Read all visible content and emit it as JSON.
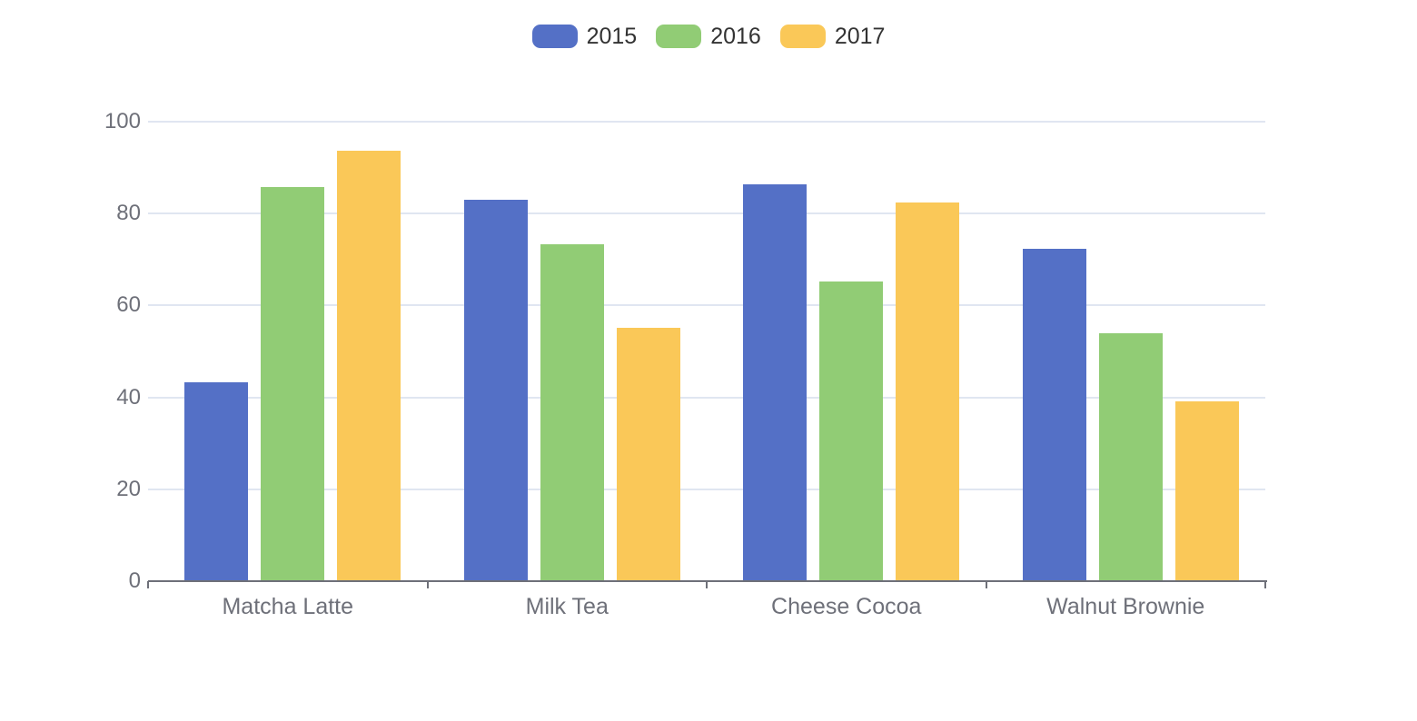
{
  "chart_data": {
    "type": "bar",
    "title": "",
    "xlabel": "",
    "ylabel": "",
    "categories": [
      "Matcha Latte",
      "Milk Tea",
      "Cheese Cocoa",
      "Walnut Brownie"
    ],
    "series": [
      {
        "name": "2015",
        "color": "#5470C6",
        "values": [
          43.3,
          83.1,
          86.4,
          72.4
        ]
      },
      {
        "name": "2016",
        "color": "#91CC75",
        "values": [
          85.8,
          73.4,
          65.2,
          53.9
        ]
      },
      {
        "name": "2017",
        "color": "#FAC858",
        "values": [
          93.7,
          55.1,
          82.5,
          39.1
        ]
      }
    ],
    "ylim": [
      0,
      100
    ],
    "yticks": [
      0,
      20,
      40,
      60,
      80,
      100
    ],
    "grid": true,
    "legend_position": "top-center"
  },
  "colors": {
    "background": "#ffffff",
    "grid_line": "#E0E6F1",
    "axis_line": "#6E7079",
    "axis_label_text": "#6E7079",
    "legend_text": "#333333"
  }
}
